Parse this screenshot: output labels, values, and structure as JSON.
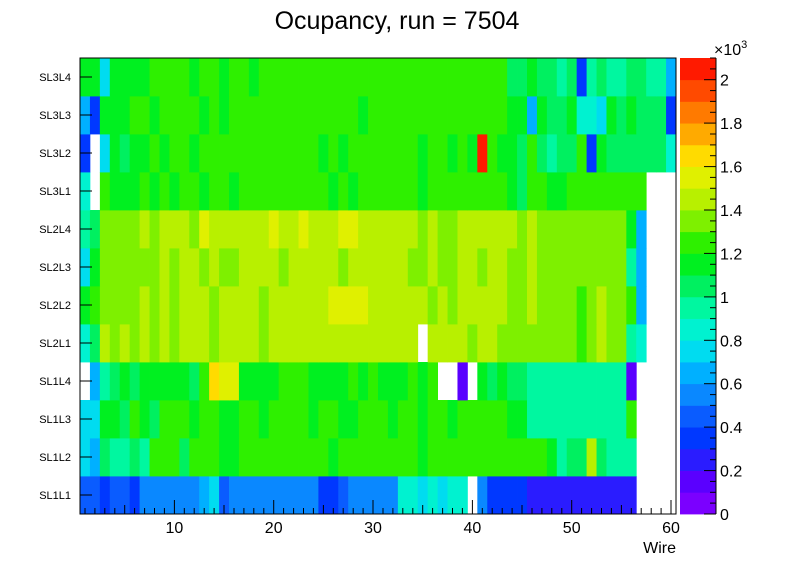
{
  "chart_data": {
    "type": "heatmap",
    "title": "Ocupancy, run = 7504",
    "xlabel": "Wire",
    "ylabel": "",
    "xlim": [
      0.5,
      60.5
    ],
    "x_ticks": [
      "10",
      "20",
      "30",
      "40",
      "50",
      "60"
    ],
    "x_tick_values": [
      10,
      20,
      30,
      40,
      50,
      60
    ],
    "categories_y": [
      "SL1L1",
      "SL1L2",
      "SL1L3",
      "SL1L4",
      "SL2L1",
      "SL2L2",
      "SL2L3",
      "SL2L4",
      "SL3L1",
      "SL3L2",
      "SL3L3",
      "SL3L4"
    ],
    "zlim": [
      0,
      2100
    ],
    "colorbar_exponent_label": "×10",
    "colorbar_exponent": "3",
    "colorbar_ticks": [
      "0",
      "0.2",
      "0.4",
      "0.6",
      "0.8",
      "1",
      "1.2",
      "1.4",
      "1.6",
      "1.8",
      "2"
    ],
    "colorbar_tick_values": [
      0,
      200,
      400,
      600,
      800,
      1000,
      1200,
      1400,
      1600,
      1800,
      2000
    ],
    "palette": [
      "#7b00ff",
      "#5a00ff",
      "#2a1cff",
      "#0038ff",
      "#0a5cff",
      "#0a88ff",
      "#00b0ff",
      "#00dcf0",
      "#00f2d0",
      "#00f7a0",
      "#00f060",
      "#00f020",
      "#2ef000",
      "#7ef000",
      "#b8f000",
      "#e0f000",
      "#ffdb00",
      "#ffaa00",
      "#ff7a00",
      "#ff4a00",
      "#ff1a00"
    ],
    "rows": [
      {
        "layer": "SL1L1",
        "values": [
          400,
          400,
          300,
          450,
          400,
          300,
          500,
          500,
          500,
          500,
          500,
          500,
          650,
          700,
          450,
          500,
          500,
          500,
          500,
          500,
          500,
          500,
          500,
          500,
          300,
          350,
          400,
          500,
          500,
          500,
          500,
          500,
          850,
          850,
          750,
          800,
          750,
          800,
          800,
          null,
          500,
          300,
          300,
          300,
          300,
          200,
          200,
          200,
          200,
          200,
          200,
          200,
          200,
          200,
          200,
          200,
          null,
          null,
          null,
          null
        ]
      },
      {
        "layer": "SL1L2",
        "values": [
          700,
          650,
          1050,
          950,
          950,
          1000,
          950,
          1200,
          1200,
          1200,
          1050,
          1200,
          1200,
          1200,
          1100,
          1100,
          1200,
          1200,
          1200,
          1200,
          1200,
          1200,
          1200,
          1200,
          1200,
          1100,
          1200,
          1200,
          1200,
          1200,
          1200,
          1200,
          1200,
          1200,
          1100,
          1200,
          1200,
          1200,
          1200,
          1200,
          1200,
          1200,
          1200,
          1200,
          1200,
          1200,
          1200,
          1100,
          950,
          1050,
          1000,
          1400,
          1050,
          950,
          950,
          950,
          null,
          null,
          null,
          null
        ]
      },
      {
        "layer": "SL1L3",
        "values": [
          700,
          700,
          1100,
          1100,
          1050,
          1200,
          1150,
          1050,
          1200,
          1200,
          1200,
          1150,
          1200,
          1200,
          1150,
          1150,
          1200,
          1200,
          1100,
          1200,
          1200,
          1200,
          1200,
          1150,
          1200,
          1200,
          1150,
          1150,
          1200,
          1200,
          1200,
          1150,
          1200,
          1200,
          1100,
          1200,
          1200,
          1150,
          1200,
          1200,
          1200,
          1200,
          1200,
          1150,
          1100,
          900,
          950,
          900,
          950,
          950,
          950,
          950,
          950,
          900,
          950,
          1200,
          null,
          null,
          null,
          null
        ]
      },
      {
        "layer": "SL1L4",
        "values": [
          null,
          650,
          900,
          1050,
          1150,
          1050,
          1150,
          1100,
          1150,
          1100,
          1150,
          1050,
          1200,
          1650,
          1500,
          1500,
          1150,
          1150,
          1150,
          1150,
          1200,
          1200,
          1200,
          1150,
          1100,
          1100,
          1100,
          1200,
          1150,
          1200,
          1100,
          1150,
          1150,
          1200,
          1150,
          1200,
          null,
          null,
          150,
          null,
          1150,
          1050,
          1150,
          1050,
          1050,
          950,
          950,
          950,
          950,
          950,
          950,
          950,
          950,
          950,
          950,
          100,
          null,
          null,
          null,
          null
        ]
      },
      {
        "layer": "SL2L1",
        "values": [
          800,
          1050,
          1400,
          1350,
          1400,
          1300,
          1400,
          1350,
          1400,
          1350,
          1400,
          1400,
          1400,
          1350,
          1400,
          1400,
          1400,
          1400,
          1300,
          1400,
          1400,
          1400,
          1400,
          1400,
          1400,
          1400,
          1400,
          1400,
          1400,
          1400,
          1400,
          1400,
          1400,
          1400,
          null,
          1400,
          1400,
          1400,
          1400,
          1300,
          1400,
          1400,
          1300,
          1300,
          1300,
          1300,
          1300,
          1300,
          1300,
          1300,
          1200,
          1300,
          1400,
          1300,
          1300,
          950,
          800,
          null,
          null,
          null
        ]
      },
      {
        "layer": "SL2L2",
        "values": [
          1100,
          1200,
          1300,
          1300,
          1300,
          1350,
          1400,
          1350,
          1400,
          1350,
          1400,
          1450,
          1400,
          1300,
          1400,
          1400,
          1400,
          1400,
          1350,
          1400,
          1400,
          1400,
          1400,
          1400,
          1450,
          1500,
          1500,
          1500,
          1500,
          1400,
          1450,
          1400,
          1400,
          1400,
          1400,
          1300,
          1400,
          1350,
          1400,
          1400,
          1400,
          1400,
          1400,
          1350,
          1300,
          1400,
          1300,
          1300,
          1300,
          1300,
          1200,
          1300,
          1400,
          1300,
          1300,
          1250,
          650,
          null,
          null,
          null
        ]
      },
      {
        "layer": "SL2L3",
        "values": [
          700,
          1100,
          1300,
          1300,
          1300,
          1300,
          1300,
          1300,
          1400,
          1350,
          1400,
          1400,
          1350,
          1400,
          1350,
          1350,
          1400,
          1400,
          1400,
          1400,
          1350,
          1400,
          1400,
          1400,
          1400,
          1400,
          1350,
          1400,
          1400,
          1400,
          1400,
          1400,
          1400,
          1350,
          1300,
          1400,
          1300,
          1350,
          1400,
          1400,
          1350,
          1400,
          1400,
          1350,
          1300,
          1400,
          1300,
          1300,
          1300,
          1300,
          1300,
          1300,
          1300,
          1300,
          1300,
          950,
          650,
          null,
          null,
          null
        ]
      },
      {
        "layer": "SL2L4",
        "values": [
          900,
          1050,
          1300,
          1300,
          1350,
          1350,
          1400,
          1350,
          1400,
          1400,
          1400,
          1350,
          1500,
          1450,
          1400,
          1400,
          1400,
          1450,
          1400,
          1500,
          1400,
          1400,
          1500,
          1400,
          1400,
          1400,
          1500,
          1500,
          1450,
          1450,
          1400,
          1400,
          1400,
          1400,
          1300,
          1400,
          1300,
          1300,
          1400,
          1400,
          1400,
          1400,
          1400,
          1400,
          1300,
          1400,
          1300,
          1350,
          1350,
          1350,
          1350,
          1350,
          1350,
          1350,
          1350,
          1100,
          650,
          null,
          null,
          null
        ]
      },
      {
        "layer": "SL3L1",
        "values": [
          800,
          null,
          1200,
          1100,
          1150,
          1150,
          1200,
          1150,
          1200,
          1150,
          1200,
          1200,
          1150,
          1200,
          1200,
          1100,
          1200,
          1200,
          1200,
          1200,
          1200,
          1200,
          1200,
          1200,
          1200,
          1150,
          1200,
          1100,
          1200,
          1200,
          1200,
          1200,
          1200,
          1200,
          1100,
          1200,
          1200,
          1200,
          1200,
          1200,
          1200,
          1200,
          1200,
          1150,
          1050,
          1200,
          1200,
          1150,
          1150,
          1200,
          1200,
          1200,
          1200,
          1200,
          1200,
          1200,
          1200,
          null,
          null,
          null
        ]
      },
      {
        "layer": "SL3L2",
        "values": [
          300,
          null,
          700,
          1100,
          1050,
          1100,
          1100,
          1200,
          1100,
          1200,
          1200,
          1100,
          1200,
          1200,
          1200,
          1200,
          1200,
          1200,
          1200,
          1200,
          1200,
          1200,
          1200,
          1200,
          1150,
          1200,
          1100,
          1200,
          1200,
          1200,
          1200,
          1200,
          1200,
          1200,
          1150,
          1200,
          1200,
          1150,
          1200,
          1150,
          2050,
          1200,
          1100,
          1150,
          1050,
          1200,
          1000,
          950,
          1050,
          1000,
          1200,
          300,
          1100,
          1050,
          1050,
          1050,
          1050,
          1050,
          1050,
          850
        ]
      },
      {
        "layer": "SL3L3",
        "values": [
          650,
          350,
          1100,
          1100,
          1100,
          1200,
          1200,
          1150,
          1200,
          1200,
          1200,
          1200,
          1150,
          1200,
          1150,
          1200,
          1200,
          1200,
          1200,
          1200,
          1200,
          1200,
          1200,
          1200,
          1200,
          1200,
          1200,
          1200,
          1150,
          1200,
          1200,
          1200,
          1200,
          1200,
          1200,
          1200,
          1200,
          1200,
          1200,
          1200,
          1200,
          1200,
          1200,
          1150,
          1100,
          600,
          1150,
          1000,
          1050,
          1100,
          800,
          800,
          700,
          1100,
          1050,
          1100,
          1050,
          1050,
          1050,
          300
        ]
      },
      {
        "layer": "SL3L4",
        "values": [
          1100,
          1150,
          750,
          1100,
          1100,
          1150,
          1100,
          1200,
          1200,
          1200,
          1200,
          1150,
          1200,
          1200,
          1150,
          1200,
          1200,
          1150,
          1200,
          1200,
          1200,
          1200,
          1200,
          1200,
          1200,
          1200,
          1200,
          1200,
          1200,
          1200,
          1200,
          1200,
          1200,
          1200,
          1200,
          1200,
          1200,
          1200,
          1200,
          1200,
          1200,
          1200,
          1200,
          1050,
          1050,
          1100,
          1050,
          1050,
          950,
          1050,
          350,
          950,
          1050,
          950,
          950,
          1050,
          1050,
          950,
          950,
          650
        ]
      }
    ]
  }
}
